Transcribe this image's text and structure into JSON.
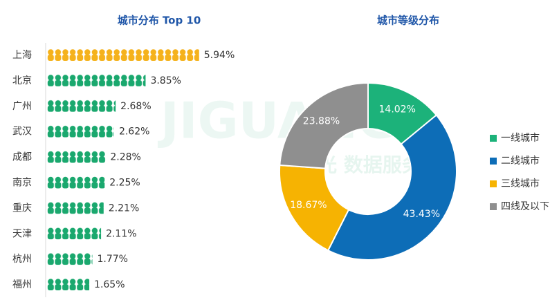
{
  "chart_data": [
    {
      "type": "bar",
      "orientation": "horizontal",
      "title": "城市分布 Top 10",
      "categories": [
        "上海",
        "北京",
        "广州",
        "武汉",
        "成都",
        "南京",
        "重庆",
        "天津",
        "杭州",
        "福州"
      ],
      "values": [
        5.94,
        3.85,
        2.68,
        2.62,
        2.28,
        2.25,
        2.21,
        2.11,
        1.77,
        1.65
      ],
      "value_labels": [
        "5.94%",
        "3.85%",
        "2.68%",
        "2.62%",
        "2.28%",
        "2.25%",
        "2.21%",
        "2.11%",
        "1.77%",
        "1.65%"
      ],
      "colors": [
        "#f5b21c",
        "#1aa86e",
        "#1aa86e",
        "#1aa86e",
        "#1aa86e",
        "#1aa86e",
        "#1aa86e",
        "#1aa86e",
        "#1aa86e",
        "#1aa86e"
      ]
    },
    {
      "type": "pie",
      "donut": true,
      "title": "城市等级分布",
      "categories": [
        "一线城市",
        "二线城市",
        "三线城市",
        "四线及以下"
      ],
      "values": [
        14.02,
        43.43,
        18.67,
        23.88
      ],
      "value_labels": [
        "14.02%",
        "43.43%",
        "18.67%",
        "23.88%"
      ],
      "colors": [
        "#1cb27a",
        "#0d6db7",
        "#f6b302",
        "#8f8f8f"
      ],
      "legend": "right"
    }
  ],
  "watermark": {
    "logo": "JIGUANG",
    "text": "极光 数据服务"
  }
}
